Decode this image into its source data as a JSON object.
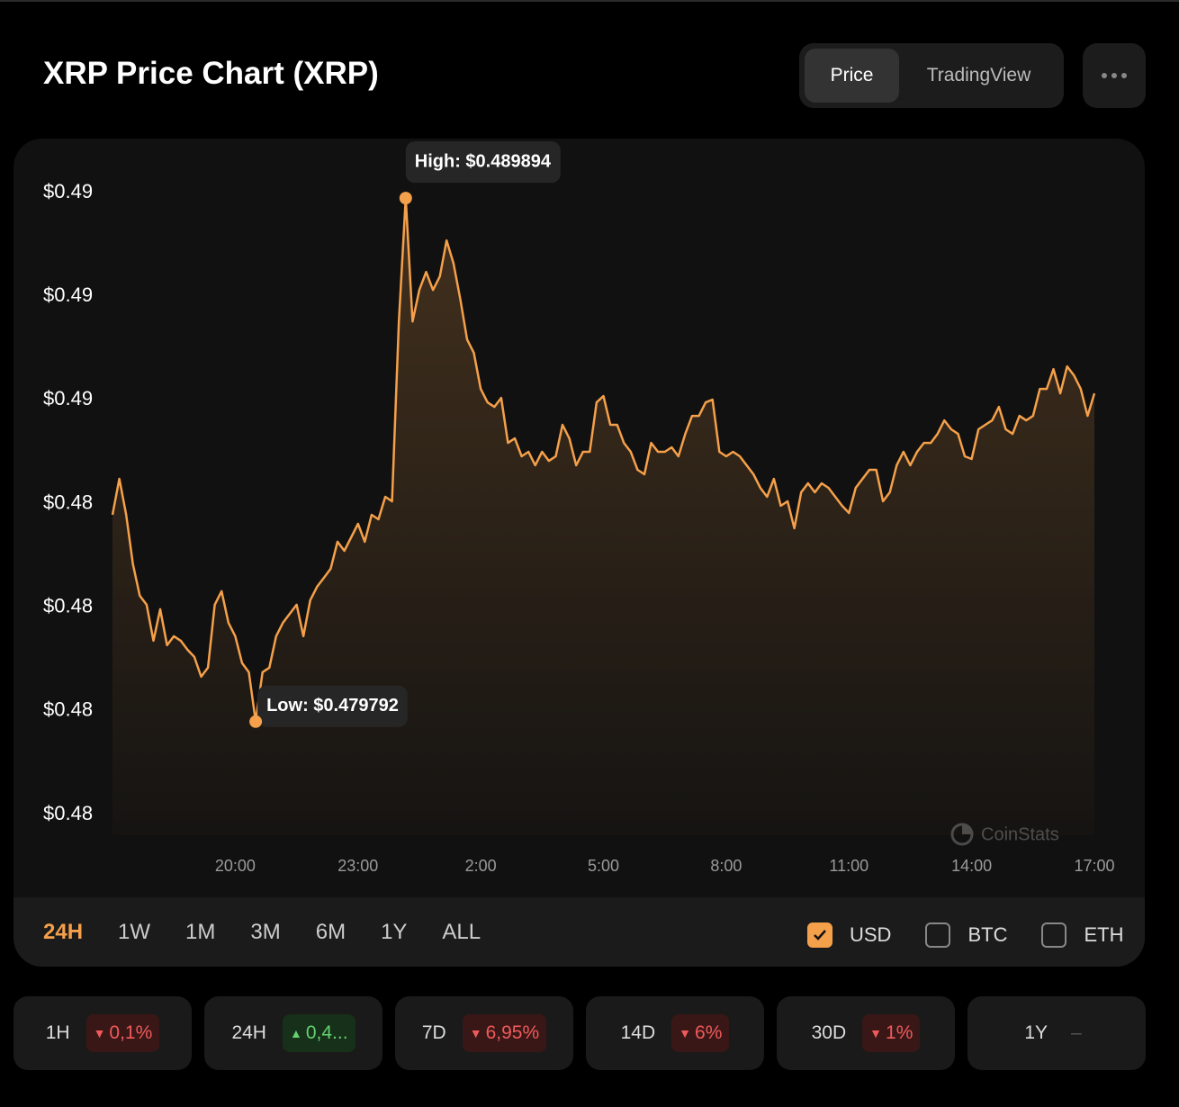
{
  "header": {
    "title": "XRP Price Chart (XRP)",
    "tabs": [
      {
        "label": "Price",
        "active": true
      },
      {
        "label": "TradingView",
        "active": false
      }
    ]
  },
  "chart_data": {
    "type": "line",
    "color": "#f5a04a",
    "ylim": [
      0.4776,
      0.4904
    ],
    "yticks": [
      {
        "value": 0.49,
        "label": "$0.49"
      },
      {
        "value": 0.488,
        "label": "$0.49"
      },
      {
        "value": 0.486,
        "label": "$0.49"
      },
      {
        "value": 0.484,
        "label": "$0.48"
      },
      {
        "value": 0.482,
        "label": "$0.48"
      },
      {
        "value": 0.48,
        "label": "$0.48"
      },
      {
        "value": 0.478,
        "label": "$0.48"
      }
    ],
    "categories": [
      null,
      null,
      null,
      null,
      null,
      null,
      null,
      null,
      null,
      null,
      null,
      null,
      null,
      null,
      null,
      null,
      null,
      null,
      "20:00",
      null,
      null,
      null,
      null,
      null,
      null,
      null,
      null,
      null,
      null,
      null,
      null,
      null,
      null,
      null,
      null,
      null,
      "23:00",
      null,
      null,
      null,
      null,
      null,
      null,
      null,
      null,
      null,
      null,
      null,
      null,
      null,
      null,
      null,
      null,
      null,
      "2:00",
      null,
      null,
      null,
      null,
      null,
      null,
      null,
      null,
      null,
      null,
      null,
      null,
      null,
      null,
      null,
      null,
      null,
      "5:00",
      null,
      null,
      null,
      null,
      null,
      null,
      null,
      null,
      null,
      null,
      null,
      null,
      null,
      null,
      null,
      null,
      null,
      "8:00",
      null,
      null,
      null,
      null,
      null,
      null,
      null,
      null,
      null,
      null,
      null,
      null,
      null,
      null,
      null,
      null,
      null,
      "11:00",
      null,
      null,
      null,
      null,
      null,
      null,
      null,
      null,
      null,
      null,
      null,
      null,
      null,
      null,
      null,
      null,
      null,
      "14:00",
      null,
      null,
      null,
      null,
      null,
      null,
      null,
      null,
      null,
      null,
      null,
      null,
      null,
      null,
      null,
      null,
      null,
      "17:00"
    ],
    "values": [
      0.483783,
      0.484477,
      0.483783,
      0.482829,
      0.482221,
      0.482048,
      0.481354,
      0.481961,
      0.481267,
      0.48144,
      0.481354,
      0.48118,
      0.481041,
      0.480659,
      0.480833,
      0.482048,
      0.482308,
      0.481701,
      0.48144,
      0.48092,
      0.480746,
      0.479792,
      0.480746,
      0.480833,
      0.48144,
      0.481701,
      0.481874,
      0.482048,
      0.48144,
      0.482135,
      0.482395,
      0.482568,
      0.482742,
      0.483263,
      0.483089,
      0.483349,
      0.48361,
      0.483263,
      0.483783,
      0.483696,
      0.48413,
      0.484043,
      0.487514,
      0.489894,
      0.487514,
      0.488122,
      0.488469,
      0.488122,
      0.488382,
      0.489076,
      0.488642,
      0.487948,
      0.487167,
      0.486907,
      0.486213,
      0.485952,
      0.485866,
      0.486039,
      0.485171,
      0.485258,
      0.484911,
      0.484998,
      0.484738,
      0.484998,
      0.484824,
      0.484911,
      0.485519,
      0.485258,
      0.484738,
      0.484998,
      0.484998,
      0.485952,
      0.486074,
      0.485519,
      0.485519,
      0.485171,
      0.484998,
      0.484651,
      0.484564,
      0.485171,
      0.484998,
      0.484998,
      0.485085,
      0.484911,
      0.485345,
      0.485692,
      0.485692,
      0.485952,
      0.486004,
      0.484998,
      0.484911,
      0.484998,
      0.484911,
      0.484738,
      0.484564,
      0.484304,
      0.48413,
      0.484477,
      0.483957,
      0.484043,
      0.483523,
      0.484217,
      0.484391,
      0.484217,
      0.484391,
      0.484304,
      0.48413,
      0.483957,
      0.483818,
      0.484304,
      0.484477,
      0.484651,
      0.484651,
      0.484043,
      0.484217,
      0.484738,
      0.484998,
      0.484738,
      0.484998,
      0.485171,
      0.485171,
      0.485345,
      0.485605,
      0.485432,
      0.485345,
      0.484911,
      0.484859,
      0.485432,
      0.485519,
      0.485605,
      0.485866,
      0.485432,
      0.485345,
      0.485692,
      0.485605,
      0.485692,
      0.486213,
      0.486213,
      0.486595,
      0.486126,
      0.486647,
      0.486473,
      0.486213,
      0.485692,
      0.486126
    ],
    "annotations": [
      {
        "text": "High: $0.489894",
        "value": 0.489894
      },
      {
        "text": "Low: $0.479792",
        "value": 0.479792
      }
    ],
    "watermark": "CoinStats"
  },
  "ranges": [
    {
      "label": "24H",
      "active": true
    },
    {
      "label": "1W",
      "active": false
    },
    {
      "label": "1M",
      "active": false
    },
    {
      "label": "3M",
      "active": false
    },
    {
      "label": "6M",
      "active": false
    },
    {
      "label": "1Y",
      "active": false
    },
    {
      "label": "ALL",
      "active": false
    }
  ],
  "currencies": [
    {
      "label": "USD",
      "checked": true
    },
    {
      "label": "BTC",
      "checked": false
    },
    {
      "label": "ETH",
      "checked": false
    }
  ],
  "changes": [
    {
      "period": "1H",
      "change": "0,1%",
      "direction": "down"
    },
    {
      "period": "24H",
      "change": "0,4...",
      "direction": "up"
    },
    {
      "period": "7D",
      "change": "6,95%",
      "direction": "down"
    },
    {
      "period": "14D",
      "change": "6%",
      "direction": "down"
    },
    {
      "period": "30D",
      "change": "1%",
      "direction": "down"
    },
    {
      "period": "1Y",
      "change": "–",
      "direction": "none"
    }
  ]
}
